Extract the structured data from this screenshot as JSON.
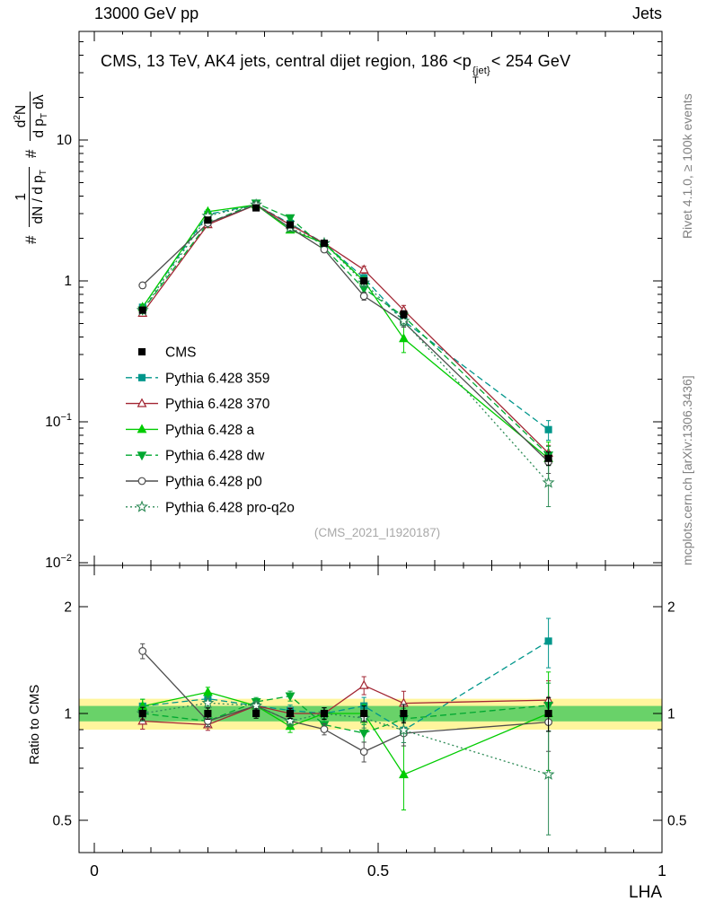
{
  "page": {
    "header_left": "13000 GeV pp",
    "header_right": "Jets",
    "title": {
      "a": "CMS, 13 TeV, AK4 jets, central dijet region, 186 <p",
      "sup": "{jet}",
      "sub": "T",
      "b": "< 254 GeV"
    },
    "ylabel": {
      "hash1": "#",
      "f1_num": "1",
      "f1_den_a": "dN / d p",
      "f1_den_sub": "T",
      "hash2": "#",
      "f2_num_a": "d",
      "f2_num_sup": "2",
      "f2_num_b": "N",
      "f2_den_a": "d p",
      "f2_den_sub": "T",
      "f2_den_b": " dλ"
    },
    "ratio_ylabel": "Ratio to CMS",
    "right_top": "Rivet 4.1.0, ≥ 100k events",
    "right_bottom": "mcplots.cern.ch [arXiv:1306.3436]",
    "watermark": "(CMS_2021_I1920187)",
    "xlabel": "LHA"
  },
  "chart_data": {
    "type": "line",
    "title": "CMS, 13 TeV, AK4 jets, central dijet region, 186 < pT(jet) < 254 GeV",
    "xlabel": "LHA",
    "ylabel": "1/(dN/dpT) d2N/(dpT dlambda)",
    "ratio_label": "Ratio to CMS",
    "x": [
      0.085,
      0.2,
      0.285,
      0.345,
      0.405,
      0.475,
      0.545,
      0.8
    ],
    "series": [
      {
        "name": "CMS",
        "color": "#000000",
        "marker": "square",
        "filled": true,
        "line": "none",
        "values": [
          0.62,
          2.7,
          3.3,
          2.5,
          1.85,
          1.0,
          0.58,
          0.055
        ],
        "yerr": [
          0.025,
          0.1,
          0.1,
          0.08,
          0.07,
          0.05,
          0.035,
          0.006
        ]
      },
      {
        "name": "Pythia 6.428 359",
        "color": "#00968b",
        "marker": "square",
        "filled": true,
        "line": "dash",
        "values": [
          0.65,
          2.97,
          3.47,
          2.55,
          1.85,
          1.05,
          0.52,
          0.088
        ],
        "yerr": [
          0.03,
          0.1,
          0.1,
          0.09,
          0.07,
          0.06,
          0.04,
          0.014
        ]
      },
      {
        "name": "Pythia 6.428 370",
        "color": "#a22633",
        "marker": "triangle",
        "filled": false,
        "line": "solid",
        "values": [
          0.59,
          2.51,
          3.47,
          2.5,
          1.85,
          1.2,
          0.62,
          0.06
        ],
        "yerr": [
          0.03,
          0.09,
          0.1,
          0.09,
          0.07,
          0.07,
          0.05,
          0.008
        ]
      },
      {
        "name": "Pythia 6.428 a",
        "color": "#00cc00",
        "marker": "triangle",
        "filled": true,
        "line": "solid",
        "values": [
          0.65,
          3.1,
          3.47,
          2.3,
          1.85,
          1.0,
          0.39,
          0.055
        ],
        "yerr": [
          0.03,
          0.1,
          0.1,
          0.09,
          0.07,
          0.06,
          0.08,
          0.017
        ]
      },
      {
        "name": "Pythia 6.428 dw",
        "color": "#00a830",
        "marker": "triangle-down",
        "filled": true,
        "line": "dash",
        "values": [
          0.62,
          2.57,
          3.56,
          2.8,
          1.72,
          0.88,
          0.56,
          0.058
        ],
        "yerr": [
          0.03,
          0.09,
          0.1,
          0.09,
          0.07,
          0.05,
          0.04,
          0.009
        ]
      },
      {
        "name": "Pythia 6.428 p0",
        "color": "#4d4d4d",
        "marker": "circle",
        "filled": false,
        "line": "solid",
        "values": [
          0.93,
          2.57,
          3.47,
          2.38,
          1.67,
          0.78,
          0.51,
          0.052
        ],
        "yerr": [
          0.045,
          0.09,
          0.1,
          0.08,
          0.06,
          0.05,
          0.04,
          0.009
        ]
      },
      {
        "name": "Pythia 6.428 pro-q2o",
        "color": "#2e8b57",
        "marker": "star",
        "filled": false,
        "line": "dot",
        "values": [
          0.62,
          2.89,
          3.47,
          2.38,
          1.85,
          0.97,
          0.52,
          0.037
        ],
        "yerr": [
          0.03,
          0.1,
          0.1,
          0.08,
          0.07,
          0.06,
          0.04,
          0.012
        ]
      }
    ],
    "axes": {
      "x": {
        "min": -0.027,
        "max": 1.0,
        "majors": [
          0,
          0.5,
          1
        ],
        "labels": [
          "0",
          "0.5",
          "1"
        ]
      },
      "y_main": {
        "scale": "log",
        "min": 0.01,
        "max": 60,
        "majors": [
          {
            "v": 10,
            "base": "10"
          },
          {
            "v": 1,
            "base": "1"
          },
          {
            "v": 0.1,
            "base": "10",
            "exp": "−1"
          },
          {
            "v": 0.01,
            "base": "10",
            "exp": "−2"
          }
        ]
      },
      "y_ratio": {
        "scale": "log",
        "min": 0.405,
        "max": 2.62,
        "majors": [
          {
            "v": 2,
            "label": "2"
          },
          {
            "v": 1,
            "label": "1"
          },
          {
            "v": 0.5,
            "label": "0.5"
          }
        ],
        "minors": [
          0.6,
          0.7,
          0.8,
          0.9
        ]
      }
    },
    "bands": {
      "yellow": [
        0.9,
        1.1
      ],
      "green": [
        0.95,
        1.05
      ],
      "yellow_color": "#fff59d",
      "green_color": "#69d269"
    }
  }
}
